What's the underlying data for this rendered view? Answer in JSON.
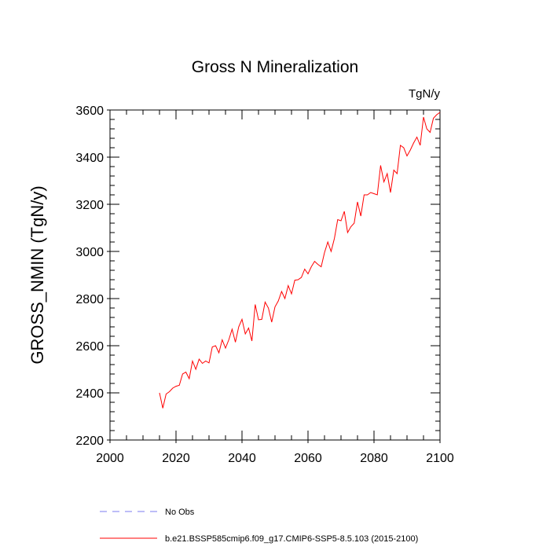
{
  "chart_data": {
    "type": "line",
    "title": "Gross N Mineralization",
    "units": "TgN/y",
    "ylabel": "GROSS_NMIN  (TgN/y)",
    "xlabel": "",
    "xlim": [
      2000,
      2100
    ],
    "ylim": [
      2200,
      3600
    ],
    "x_ticks": [
      2000,
      2020,
      2040,
      2060,
      2080,
      2100
    ],
    "y_ticks": [
      2200,
      2400,
      2600,
      2800,
      3000,
      3200,
      3400,
      3600
    ],
    "legend_position": "bottom-left",
    "series": [
      {
        "name": "No Obs",
        "color": "#7b7bf0",
        "style": "dashed",
        "x": [],
        "y": []
      },
      {
        "name": "b.e21.BSSP585cmip6.f09_g17.CMIP6-SSP5-8.5.103 (2015-2100)",
        "color": "#ff0000",
        "style": "solid",
        "x": [
          2015,
          2016,
          2017,
          2018,
          2019,
          2020,
          2021,
          2022,
          2023,
          2024,
          2025,
          2026,
          2027,
          2028,
          2029,
          2030,
          2031,
          2032,
          2033,
          2034,
          2035,
          2036,
          2037,
          2038,
          2039,
          2040,
          2041,
          2042,
          2043,
          2044,
          2045,
          2046,
          2047,
          2048,
          2049,
          2050,
          2051,
          2052,
          2053,
          2054,
          2055,
          2056,
          2057,
          2058,
          2059,
          2060,
          2061,
          2062,
          2063,
          2064,
          2065,
          2066,
          2067,
          2068,
          2069,
          2070,
          2071,
          2072,
          2073,
          2074,
          2075,
          2076,
          2077,
          2078,
          2079,
          2080,
          2081,
          2082,
          2083,
          2084,
          2085,
          2086,
          2087,
          2088,
          2089,
          2090,
          2091,
          2092,
          2093,
          2094,
          2095,
          2096,
          2097,
          2098,
          2099,
          2100
        ],
        "y": [
          2400,
          2335,
          2395,
          2405,
          2420,
          2428,
          2432,
          2480,
          2488,
          2460,
          2535,
          2500,
          2543,
          2525,
          2535,
          2527,
          2595,
          2600,
          2570,
          2625,
          2590,
          2625,
          2670,
          2615,
          2680,
          2712,
          2650,
          2675,
          2620,
          2775,
          2710,
          2712,
          2785,
          2760,
          2700,
          2765,
          2790,
          2830,
          2800,
          2855,
          2820,
          2878,
          2880,
          2890,
          2925,
          2905,
          2935,
          2958,
          2945,
          2935,
          2995,
          3040,
          3000,
          3055,
          3135,
          3130,
          3170,
          3080,
          3105,
          3120,
          3210,
          3150,
          3240,
          3240,
          3250,
          3245,
          3240,
          3365,
          3295,
          3330,
          3250,
          3345,
          3330,
          3450,
          3440,
          3405,
          3430,
          3460,
          3485,
          3450,
          3570,
          3520,
          3505,
          3565,
          3580,
          3590
        ]
      }
    ]
  }
}
